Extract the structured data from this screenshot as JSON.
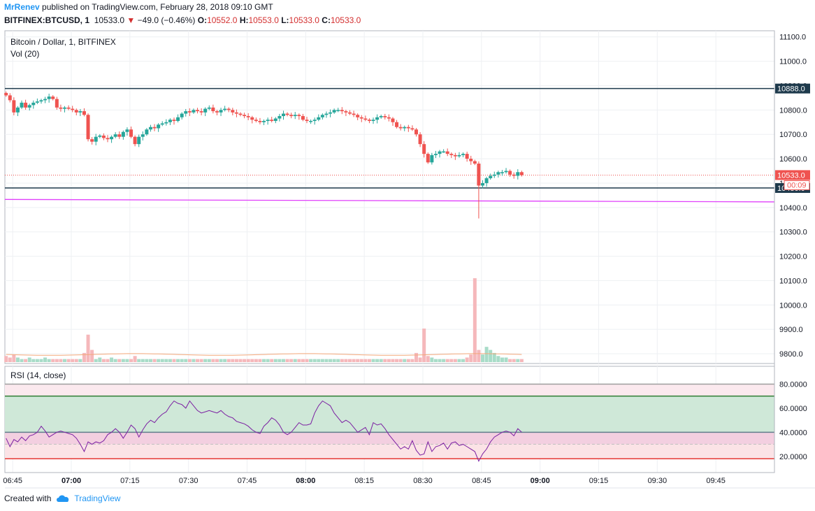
{
  "header": {
    "author": "MrRenev",
    "published_text": "published on TradingView.com, February 28, 2018 09:10 GMT",
    "symbol": "BITFINEX:BTCUSD, 1",
    "last": "10533.0",
    "change": "−49.0 (−0.46%)",
    "o_label": "O:",
    "o_value": "10552.0",
    "h_label": "H:",
    "h_value": "10553.0",
    "l_label": "L:",
    "l_value": "10533.0",
    "c_label": "C:",
    "c_value": "10533.0"
  },
  "footer": {
    "created_with": "Created with",
    "brand": "TradingView"
  },
  "colors": {
    "up": "#26a69a",
    "down": "#ef5350",
    "hline": "#1e3a4c",
    "trend": "#e040fb",
    "rsi": "#7b1fa2",
    "rsi_zone_up": "#cfe8d8",
    "rsi_zone_mid": "#f3cfe0"
  },
  "chart_data": [
    {
      "type": "candlestick",
      "title": "Bitcoin / Dollar, 1, BITFINEX",
      "subtitle": "Vol (20)",
      "x_ticks": [
        "06:45",
        "07:00",
        "07:15",
        "07:30",
        "07:45",
        "08:00",
        "08:15",
        "08:30",
        "08:45",
        "09:00",
        "09:15",
        "09:30",
        "09:45"
      ],
      "x_ticks_bold": [
        "07:00",
        "08:00",
        "09:00"
      ],
      "y_ticks": [
        11100.0,
        11000.0,
        10900.0,
        10800.0,
        10700.0,
        10600.0,
        10500.0,
        10400.0,
        10300.0,
        10200.0,
        10100.0,
        10000.0,
        9900.0,
        9800.0
      ],
      "y_tick_labels": [
        "11100.0",
        "11000.0",
        "10900.0",
        "10800.0",
        "10700.0",
        "10600.0",
        "10500.0",
        "10400.0",
        "10300.0",
        "10200.0",
        "10100.0",
        "10000.0",
        "9900.0",
        "9800.0"
      ],
      "ylim": [
        9760,
        11125
      ],
      "time_range": [
        "06:43",
        "10:00"
      ],
      "close_series": [
        10860,
        10840,
        10790,
        10810,
        10830,
        10810,
        10820,
        10830,
        10835,
        10840,
        10845,
        10855,
        10845,
        10810,
        10805,
        10810,
        10805,
        10800,
        10790,
        10795,
        10780,
        10680,
        10670,
        10690,
        10695,
        10685,
        10680,
        10690,
        10700,
        10690,
        10710,
        10720,
        10690,
        10660,
        10690,
        10700,
        10720,
        10730,
        10725,
        10740,
        10745,
        10750,
        10760,
        10755,
        10770,
        10785,
        10795,
        10790,
        10800,
        10795,
        10790,
        10805,
        10810,
        10795,
        10790,
        10800,
        10805,
        10800,
        10790,
        10785,
        10780,
        10775,
        10770,
        10760,
        10755,
        10750,
        10755,
        10760,
        10755,
        10765,
        10775,
        10785,
        10780,
        10775,
        10780,
        10775,
        10760,
        10755,
        10755,
        10760,
        10770,
        10780,
        10785,
        10790,
        10800,
        10800,
        10795,
        10790,
        10785,
        10780,
        10770,
        10765,
        10760,
        10755,
        10760,
        10770,
        10775,
        10770,
        10765,
        10750,
        10730,
        10725,
        10730,
        10725,
        10720,
        10700,
        10660,
        10620,
        10585,
        10615,
        10620,
        10630,
        10630,
        10620,
        10615,
        10610,
        10615,
        10620,
        10600,
        10590,
        10580,
        10490,
        10500,
        10520,
        10530,
        10535,
        10545,
        10545,
        10550,
        10535,
        10530,
        10545,
        10533
      ],
      "opens_first": 10870,
      "horizontal_lines": [
        {
          "price": 10888.0,
          "label": "10888.0"
        },
        {
          "price": 10480.0,
          "label": "10480.0"
        }
      ],
      "trend_line": {
        "from": {
          "time": "06:43",
          "price": 10433
        },
        "to": {
          "time": "10:00",
          "price": 10423
        }
      },
      "last_price": {
        "price": 10533.0,
        "label": "10533.0",
        "countdown": "00:09"
      },
      "volume": {
        "values": [
          4,
          3,
          5,
          3,
          2,
          2,
          3,
          2,
          2,
          2,
          3,
          2,
          2,
          2,
          2,
          2,
          2,
          2,
          2,
          2,
          6,
          18,
          8,
          2,
          3,
          2,
          2,
          3,
          2,
          2,
          2,
          2,
          2,
          4,
          2,
          2,
          2,
          2,
          2,
          2,
          2,
          2,
          2,
          2,
          2,
          2,
          2,
          2,
          2,
          2,
          2,
          2,
          2,
          2,
          2,
          2,
          2,
          2,
          2,
          2,
          2,
          2,
          2,
          2,
          2,
          2,
          2,
          2,
          2,
          2,
          2,
          2,
          2,
          2,
          2,
          2,
          2,
          2,
          2,
          2,
          2,
          2,
          2,
          2,
          2,
          2,
          2,
          2,
          2,
          2,
          2,
          2,
          2,
          2,
          2,
          2,
          2,
          2,
          2,
          2,
          2,
          2,
          2,
          2,
          2,
          6,
          3,
          22,
          4,
          3,
          2,
          2,
          2,
          2,
          2,
          2,
          2,
          2,
          3,
          5,
          55,
          8,
          5,
          10,
          8,
          6,
          4,
          3,
          3,
          2,
          2,
          2,
          2
        ],
        "ma": 5
      }
    },
    {
      "type": "line",
      "title": "RSI (14, close)",
      "y_ticks": [
        80.0,
        60.0,
        40.0,
        20.0
      ],
      "y_tick_labels": [
        "80.0000",
        "60.0000",
        "40.0000",
        "20.0000"
      ],
      "ylim": [
        10,
        82
      ],
      "bands": {
        "upper_outer": 80,
        "upper": 70,
        "mid_upper": 40,
        "mid_lower": 30,
        "lower": 18
      },
      "values": [
        35,
        28,
        34,
        32,
        36,
        33,
        37,
        38,
        40,
        45,
        41,
        36,
        38,
        40,
        41,
        40,
        39,
        38,
        35,
        30,
        24,
        32,
        30,
        32,
        31,
        33,
        38,
        40,
        43,
        40,
        35,
        40,
        46,
        43,
        36,
        42,
        47,
        50,
        48,
        52,
        55,
        57,
        62,
        66,
        64,
        63,
        60,
        66,
        62,
        58,
        56,
        57,
        58,
        57,
        56,
        58,
        55,
        53,
        52,
        49,
        48,
        47,
        45,
        42,
        40,
        39,
        45,
        48,
        52,
        50,
        46,
        40,
        38,
        40,
        44,
        48,
        46,
        46,
        47,
        56,
        62,
        66,
        64,
        62,
        56,
        52,
        48,
        50,
        48,
        44,
        40,
        42,
        44,
        38,
        48,
        46,
        47,
        43,
        38,
        34,
        30,
        26,
        28,
        26,
        33,
        25,
        21,
        22,
        32,
        24,
        28,
        29,
        31,
        26,
        31,
        32,
        29,
        30,
        28,
        26,
        24,
        16,
        22,
        26,
        32,
        36,
        38,
        40,
        41,
        40,
        37,
        43,
        40
      ]
    }
  ]
}
